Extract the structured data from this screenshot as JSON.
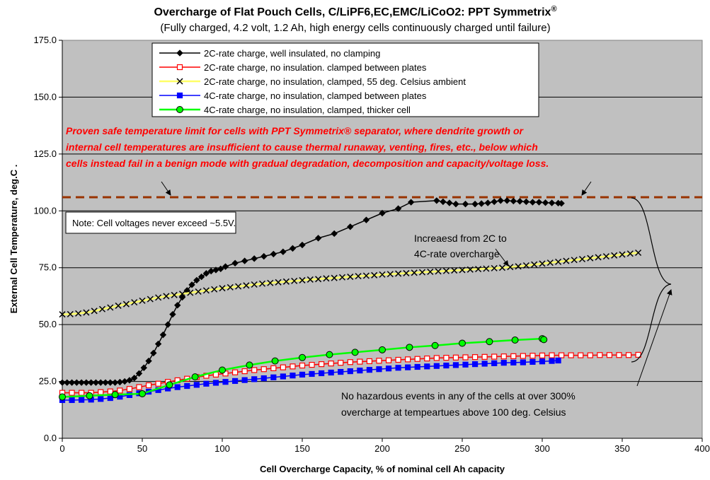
{
  "chart_data": {
    "type": "line",
    "title": "Overcharge of Flat Pouch Cells, C/LiPF6,EC,EMC/LiCoO2: PPT Symmetrix",
    "title_superscript": "®",
    "subtitle": "(Fully charged, 4.2 volt, 1.2 Ah, high energy cells continuously charged until failure)",
    "xlabel": "Cell Overcharge Capacity, % of nominal cell Ah capacity",
    "ylabel": "External Cell Temperature, deg.C   .",
    "xlim": [
      0,
      400
    ],
    "ylim": [
      0,
      175
    ],
    "xticks": [
      "0",
      "50",
      "100",
      "150",
      "200",
      "250",
      "300",
      "350",
      "400"
    ],
    "yticks": [
      "0.0",
      "25.0",
      "50.0",
      "75.0",
      "100.0",
      "125.0",
      "150.0",
      "175.0"
    ],
    "grid": "horizontal",
    "plot_background": "#c0c0c0",
    "legend_position": "top-center",
    "series": [
      {
        "name": "2C-rate charge, well insulated, no clamping",
        "color": "#000000",
        "marker": "diamond",
        "fill": "#000000",
        "x": [
          0,
          3,
          6,
          9,
          12,
          15,
          18,
          21,
          24,
          27,
          30,
          33,
          36,
          39,
          42,
          45,
          48,
          51,
          54,
          57,
          60,
          63,
          66,
          69,
          72,
          75,
          78,
          81,
          84,
          87,
          90,
          93,
          96,
          99,
          102,
          108,
          114,
          120,
          126,
          132,
          138,
          144,
          150,
          160,
          170,
          180,
          190,
          200,
          210,
          218,
          234,
          238,
          242,
          246,
          252,
          258,
          262,
          266,
          270,
          274,
          278,
          282,
          286,
          290,
          294,
          298,
          302,
          306,
          310,
          312
        ],
        "y": [
          24.5,
          24.5,
          24.5,
          24.5,
          24.5,
          24.5,
          24.5,
          24.5,
          24.5,
          24.5,
          24.5,
          24.5,
          24.7,
          25,
          25.5,
          26.5,
          28.5,
          31,
          34,
          37.5,
          41.5,
          45.5,
          50,
          54.5,
          58.5,
          62,
          65,
          67.5,
          69.5,
          71,
          72.5,
          73.5,
          74,
          74.5,
          75.5,
          77,
          78,
          79,
          80,
          81,
          82,
          83.5,
          85,
          88,
          90,
          93,
          96,
          99,
          101,
          103.8,
          104.5,
          104,
          103.5,
          103,
          103,
          103,
          103.2,
          103.5,
          104,
          104.5,
          104.5,
          104.3,
          104.2,
          104,
          103.8,
          103.8,
          103.6,
          103.5,
          103.4,
          103.3
        ]
      },
      {
        "name": "2C-rate charge, no insulation. clamped between plates",
        "color": "#ff0000",
        "marker": "square",
        "fill": "#ffffff",
        "x": [
          0,
          6,
          12,
          18,
          24,
          30,
          36,
          42,
          48,
          54,
          60,
          66,
          72,
          78,
          84,
          90,
          96,
          102,
          108,
          114,
          120,
          126,
          132,
          138,
          144,
          150,
          156,
          162,
          168,
          174,
          180,
          186,
          192,
          198,
          204,
          210,
          216,
          222,
          228,
          234,
          240,
          246,
          252,
          258,
          264,
          270,
          276,
          282,
          288,
          294,
          300,
          306,
          312,
          318,
          324,
          330,
          336,
          342,
          348,
          354,
          360
        ],
        "y": [
          20,
          20,
          20,
          20,
          20.3,
          20.6,
          21,
          21.7,
          22.5,
          23.3,
          24,
          24.8,
          25.5,
          26.2,
          26.9,
          27.5,
          28,
          28.5,
          29,
          29.5,
          30,
          30.4,
          30.8,
          31.2,
          31.6,
          32,
          32.3,
          32.6,
          32.9,
          33.2,
          33.5,
          33.7,
          33.9,
          34.1,
          34.3,
          34.5,
          34.7,
          34.9,
          35.1,
          35.3,
          35.4,
          35.5,
          35.6,
          35.7,
          35.8,
          35.9,
          36,
          36.1,
          36.2,
          36.3,
          36.4,
          36.5,
          36.5,
          36.5,
          36.5,
          36.5,
          36.6,
          36.6,
          36.6,
          36.6,
          36.7
        ]
      },
      {
        "name": "2C-rate charge, no insulation, clamped, 55 deg. Celsius ambient",
        "color": "#ffff66",
        "marker": "x",
        "fill": "#000000",
        "x": [
          0,
          5,
          10,
          15,
          20,
          25,
          30,
          35,
          40,
          45,
          50,
          55,
          60,
          65,
          70,
          75,
          80,
          85,
          90,
          95,
          100,
          105,
          110,
          115,
          120,
          125,
          130,
          135,
          140,
          145,
          150,
          155,
          160,
          165,
          170,
          175,
          180,
          185,
          190,
          195,
          200,
          205,
          210,
          215,
          220,
          225,
          230,
          235,
          240,
          245,
          250,
          255,
          260,
          265,
          270,
          275,
          280,
          285,
          290,
          295,
          300,
          305,
          310,
          315,
          320,
          325,
          330,
          335,
          340,
          345,
          350,
          355,
          360
        ],
        "y": [
          54.5,
          54.6,
          54.9,
          55.3,
          56,
          56.8,
          57.5,
          58.3,
          59,
          59.8,
          60.5,
          61.2,
          61.9,
          62.5,
          63,
          63.5,
          64,
          64.5,
          65,
          65.5,
          66,
          66.4,
          66.8,
          67.2,
          67.6,
          68,
          68.3,
          68.6,
          68.9,
          69.2,
          69.5,
          69.8,
          70,
          70.3,
          70.5,
          70.8,
          71,
          71.3,
          71.5,
          71.7,
          72,
          72.2,
          72.4,
          72.6,
          72.8,
          73,
          73.2,
          73.4,
          73.6,
          73.8,
          74,
          74.2,
          74.4,
          74.6,
          74.8,
          75,
          75.3,
          75.6,
          76,
          76.4,
          76.8,
          77.2,
          77.6,
          78,
          78.4,
          78.8,
          79.2,
          79.6,
          80,
          80.4,
          80.8,
          81.2,
          81.6
        ]
      },
      {
        "name": "4C-rate charge, no insulation, clamped between plates",
        "color": "#0000ff",
        "marker": "square",
        "fill": "#0000ff",
        "x": [
          0,
          6,
          12,
          18,
          24,
          30,
          36,
          42,
          48,
          54,
          60,
          66,
          72,
          78,
          84,
          90,
          96,
          102,
          108,
          114,
          120,
          126,
          132,
          138,
          144,
          150,
          156,
          162,
          168,
          174,
          180,
          186,
          192,
          198,
          204,
          210,
          216,
          222,
          228,
          234,
          240,
          246,
          252,
          258,
          264,
          270,
          276,
          282,
          288,
          294,
          300,
          306,
          310
        ],
        "y": [
          16.8,
          16.8,
          16.9,
          17,
          17.3,
          17.7,
          18.3,
          19,
          19.8,
          20.5,
          21.2,
          21.9,
          22.5,
          23,
          23.5,
          24,
          24.4,
          24.8,
          25.2,
          25.6,
          26,
          26.4,
          26.8,
          27.2,
          27.6,
          28,
          28.3,
          28.6,
          28.9,
          29.2,
          29.5,
          29.8,
          30.1,
          30.4,
          30.7,
          31,
          31.2,
          31.4,
          31.6,
          31.8,
          32,
          32.2,
          32.4,
          32.6,
          32.8,
          33,
          33.2,
          33.3,
          33.4,
          33.6,
          33.8,
          34,
          34.2
        ]
      },
      {
        "name": "4C-rate charge, no insulation, clamped, thicker cell",
        "color": "#00ff00",
        "marker": "circle",
        "fill": "#00ff00",
        "x": [
          0,
          17,
          33,
          50,
          67,
          83,
          100,
          117,
          133,
          150,
          167,
          183,
          200,
          217,
          233,
          250,
          267,
          283,
          300,
          301
        ],
        "y": [
          18.2,
          18.7,
          19.2,
          19.6,
          23.5,
          27,
          30,
          32.2,
          34,
          35.5,
          36.8,
          37.8,
          38.9,
          40,
          40.8,
          41.8,
          42.5,
          43.2,
          43.8,
          43.4
        ]
      }
    ],
    "reference_line": {
      "y": 106,
      "color": "#993300",
      "style": "dashed"
    },
    "annotations": [
      {
        "lines": [
          "Proven safe temperature limit for cells with PPT Symmetrix® separator, where dendrite growth or",
          "internal cell temperatures are insufficient to cause thermal runaway, venting, fires, etc., below which",
          "cells instead fail in a benign mode with gradual degradation, decomposition and capacity/voltage loss."
        ],
        "color": "#ff0000"
      },
      {
        "lines": [
          "Note: Cell voltages never exceed ~5.5V."
        ]
      },
      {
        "lines": [
          "Increaesd from 2C to",
          "4C-rate overcharge"
        ]
      },
      {
        "lines": [
          "No hazardous events in any of the cells at over 300%",
          "overcharge at tempeartues above 100 deg. Celsius"
        ]
      }
    ]
  }
}
